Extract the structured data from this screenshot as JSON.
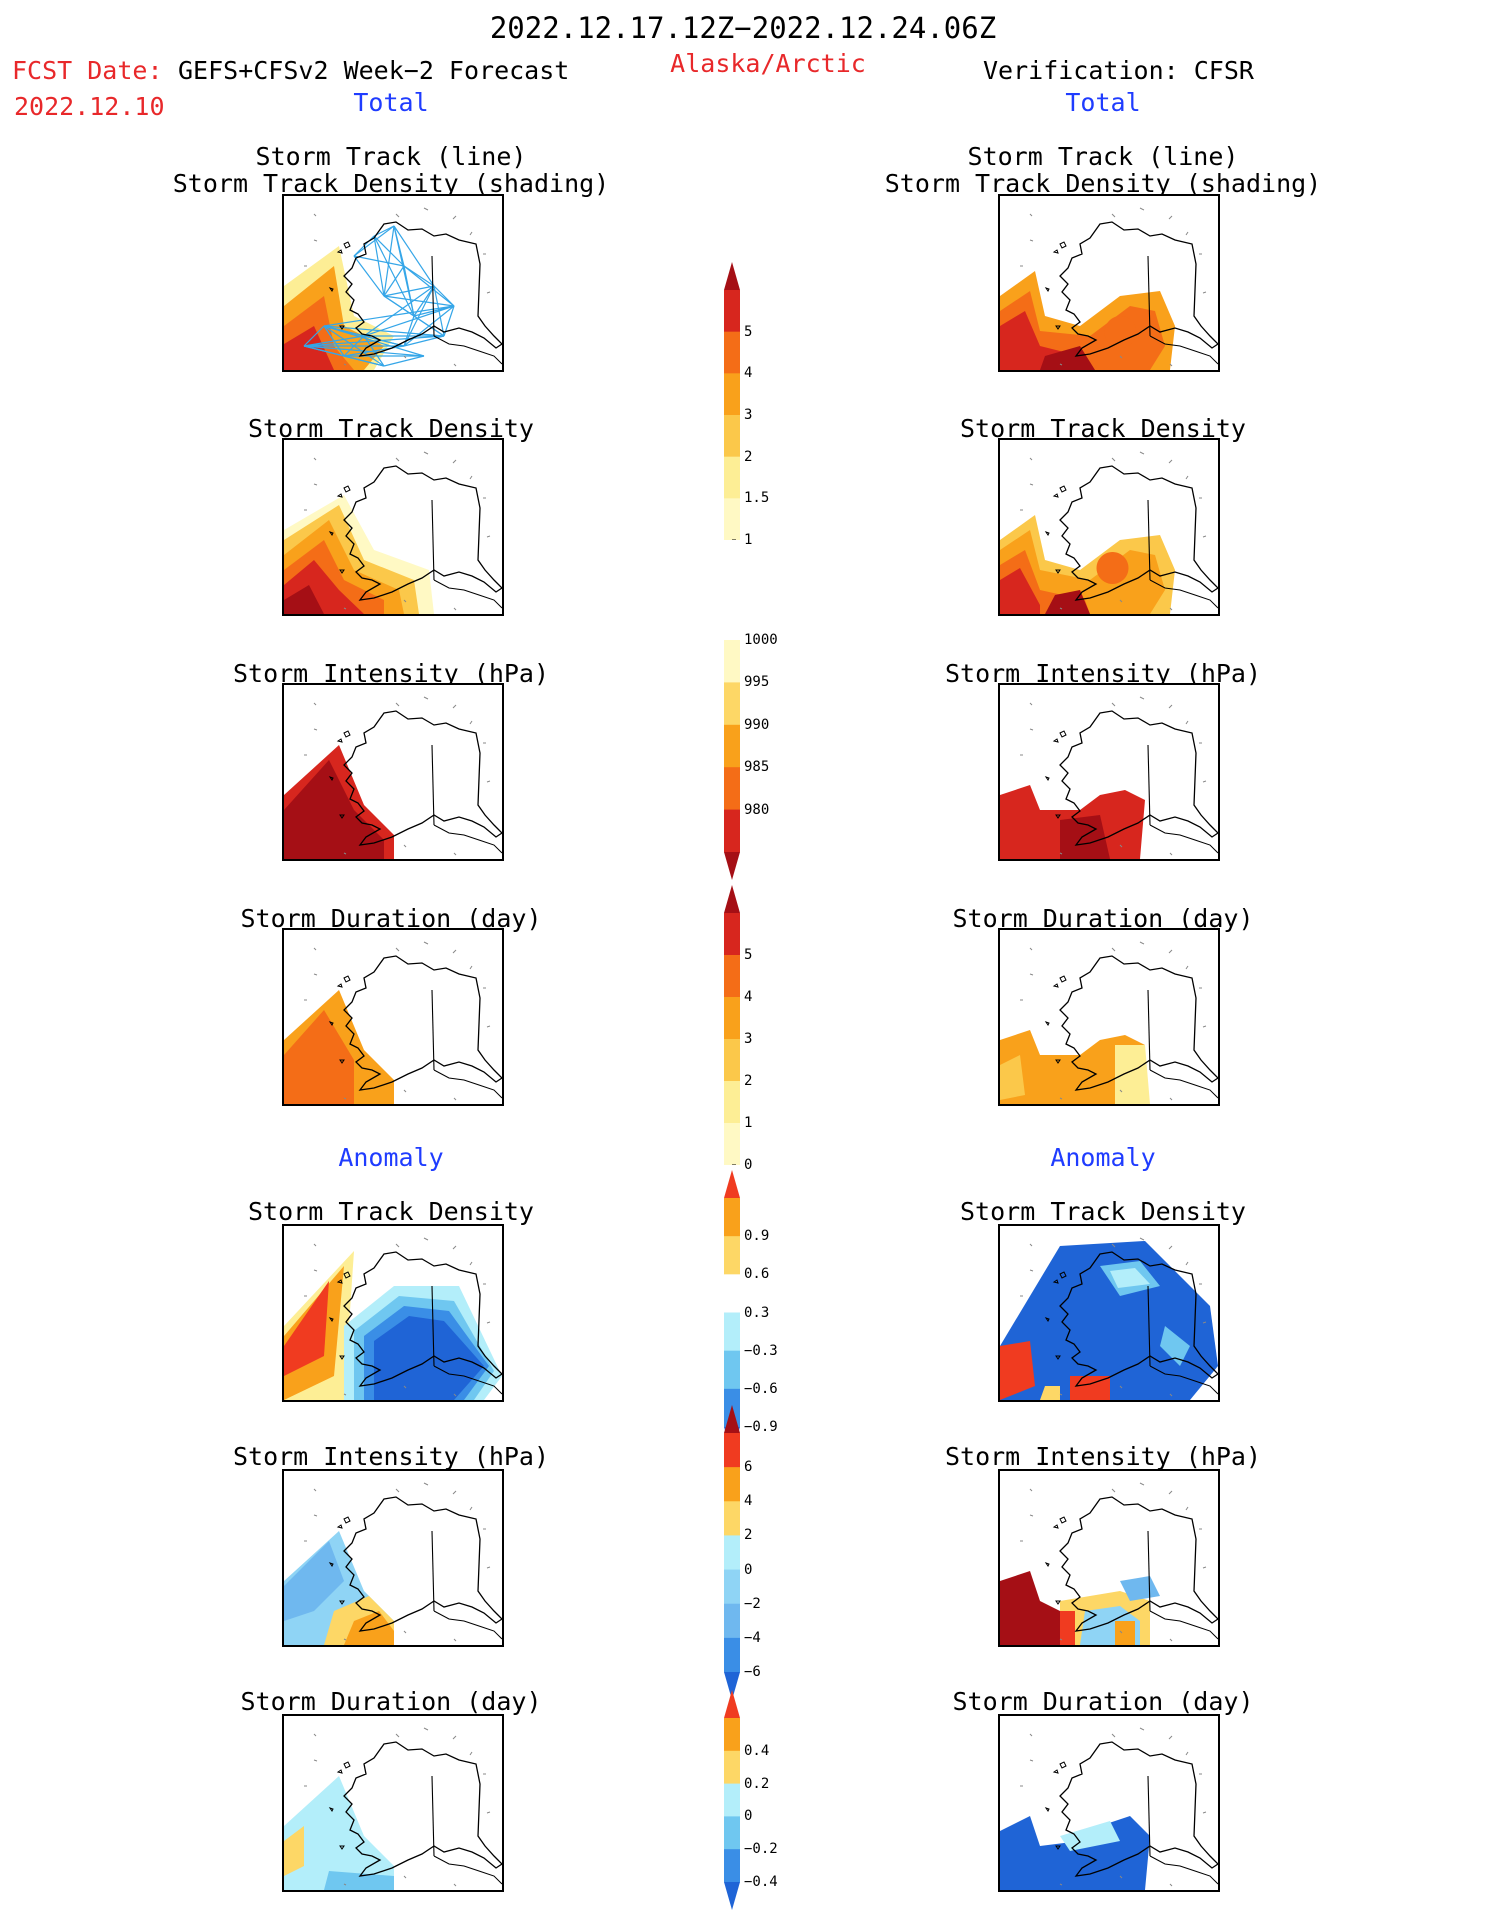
{
  "header": {
    "date_range": "2022.12.17.12Z−2022.12.24.06Z",
    "fcst_label": "FCST Date:",
    "fcst_model": "GEFS+CFSv2 Week−2 Forecast",
    "fcst_date": "2022.12.10",
    "region": "Alaska/Arctic",
    "verification": "Verification: CFSR"
  },
  "columns": {
    "left": {
      "total_label": "Total",
      "anomaly_label": "Anomaly",
      "panels": [
        {
          "title": [
            "Storm Track (line)",
            "Storm Track Density (shading)"
          ]
        },
        {
          "title": [
            "Storm Track Density"
          ]
        },
        {
          "title": [
            "Storm Intensity (hPa)"
          ]
        },
        {
          "title": [
            "Storm Duration (day)"
          ]
        },
        {
          "title": [
            "Storm Track Density"
          ]
        },
        {
          "title": [
            "Storm Intensity (hPa)"
          ]
        },
        {
          "title": [
            "Storm Duration (day)"
          ]
        }
      ]
    },
    "right": {
      "total_label": "Total",
      "anomaly_label": "Anomaly",
      "panels": [
        {
          "title": [
            "Storm Track (line)",
            "Storm Track Density (shading)"
          ]
        },
        {
          "title": [
            "Storm Track Density"
          ]
        },
        {
          "title": [
            "Storm Intensity (hPa)"
          ]
        },
        {
          "title": [
            "Storm Duration (day)"
          ]
        },
        {
          "title": [
            "Storm Track Density"
          ]
        },
        {
          "title": [
            "Storm Intensity (hPa)"
          ]
        },
        {
          "title": [
            "Storm Duration (day)"
          ]
        }
      ]
    }
  },
  "colorbars": [
    {
      "ticks": [
        "5",
        "4",
        "3",
        "2",
        "1.5",
        "1"
      ],
      "colors": [
        "#a50f15",
        "#d7261e",
        "#f46d17",
        "#f9a11b",
        "#fbc84a",
        "#fdee95",
        "#fff9c4"
      ],
      "arrow": "top"
    },
    {
      "ticks": [
        "1000",
        "995",
        "990",
        "985",
        "980"
      ],
      "colors": [
        "#fff9c4",
        "#fdd766",
        "#f9a11b",
        "#f46d17",
        "#d7261e",
        "#a50f15"
      ],
      "arrow": "bottom"
    },
    {
      "ticks": [
        "5",
        "4",
        "3",
        "2",
        "1",
        "0"
      ],
      "colors": [
        "#a50f15",
        "#d7261e",
        "#f46d17",
        "#f9a11b",
        "#fbc84a",
        "#fdee95",
        "#fff9c4"
      ],
      "arrow": "top"
    },
    {
      "ticks": [
        "0.9",
        "0.6",
        "0.3",
        "−0.3",
        "−0.6",
        "−0.9"
      ],
      "colors": [
        "#f03b20",
        "#f9a11b",
        "#fdd766",
        "#ffffff",
        "#b3eefa",
        "#6fc7f0",
        "#3a8ee6",
        "#1f64d6"
      ],
      "arrow": "both"
    },
    {
      "ticks": [
        "6",
        "4",
        "2",
        "0",
        "−2",
        "−4",
        "−6"
      ],
      "colors": [
        "#a50f15",
        "#f03b20",
        "#f9a11b",
        "#fdd766",
        "#b3eefa",
        "#8fd4f5",
        "#6fb8ef",
        "#3a8ee6",
        "#1f64d6"
      ],
      "arrow": "both"
    },
    {
      "ticks": [
        "0.4",
        "0.2",
        "0",
        "−0.2",
        "−0.4"
      ],
      "colors": [
        "#f03b20",
        "#f9a11b",
        "#fdd766",
        "#b3eefa",
        "#6fc7f0",
        "#3a8ee6",
        "#1f64d6"
      ],
      "arrow": "both"
    }
  ]
}
